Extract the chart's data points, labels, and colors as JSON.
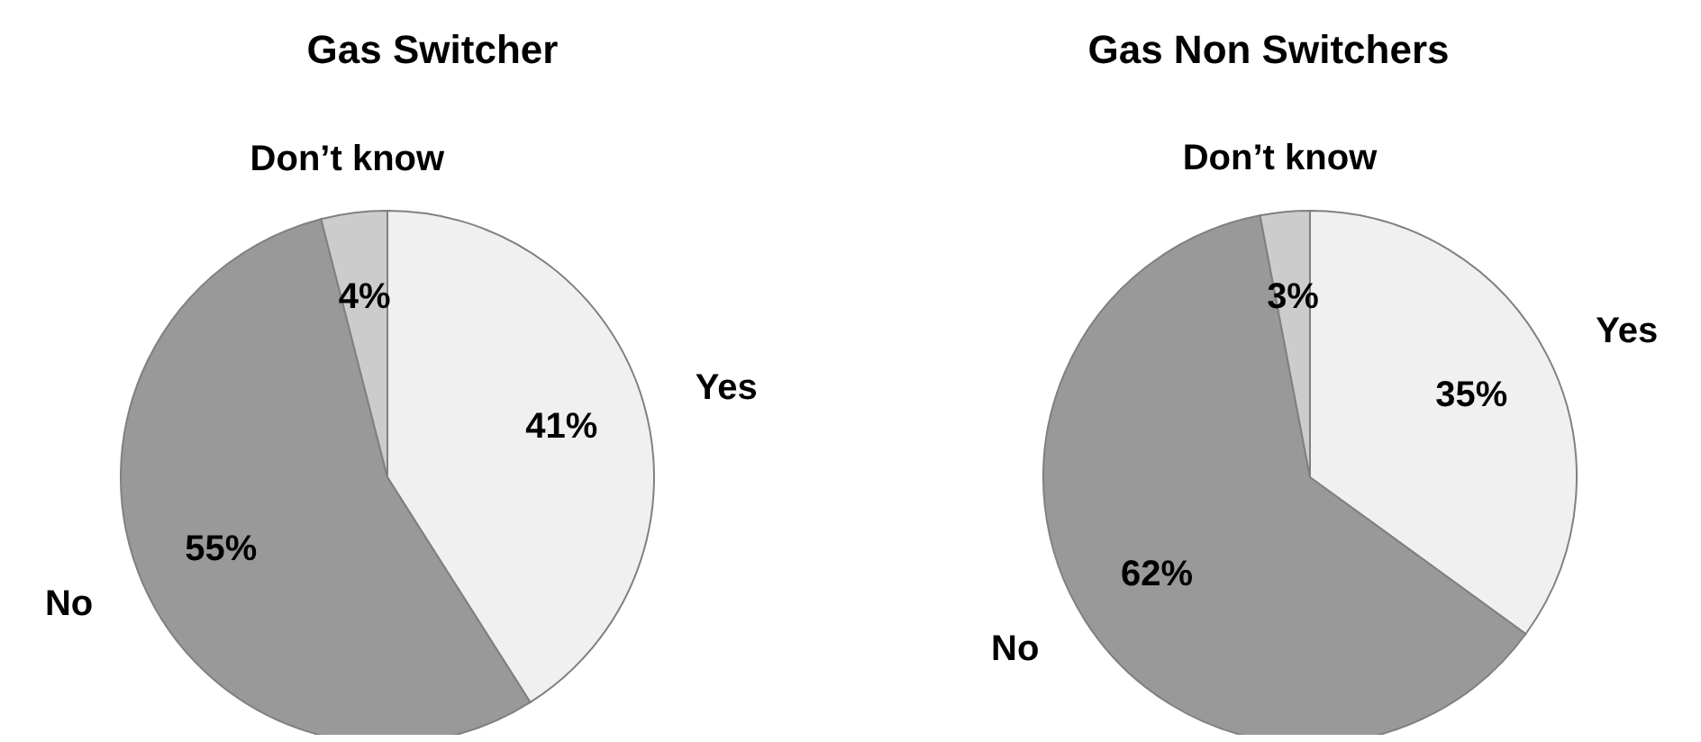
{
  "chart_data": [
    {
      "type": "pie",
      "title": "Gas Switcher",
      "categories": [
        "Yes",
        "No",
        "Don’t know"
      ],
      "values": [
        41,
        55,
        4
      ],
      "value_labels": [
        "41%",
        "55%",
        "4%"
      ],
      "colors": [
        "#f0f0f0",
        "#999999",
        "#cccccc"
      ]
    },
    {
      "type": "pie",
      "title": "Gas Non Switchers",
      "categories": [
        "Yes",
        "No",
        "Don’t know"
      ],
      "values": [
        35,
        62,
        3
      ],
      "value_labels": [
        "35%",
        "62%",
        "3%"
      ],
      "colors": [
        "#f0f0f0",
        "#999999",
        "#cccccc"
      ]
    }
  ]
}
